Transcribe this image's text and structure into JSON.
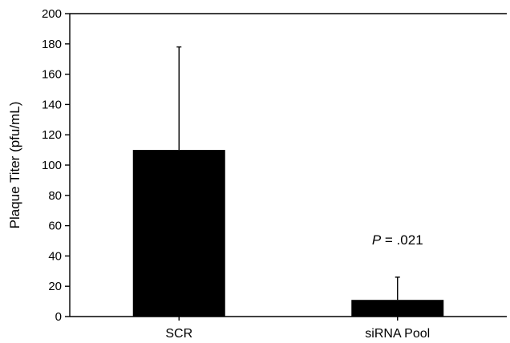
{
  "chart_data": {
    "type": "bar",
    "title": "",
    "xlabel": "",
    "ylabel": "Plaque Titer (pfu/mL)",
    "ylim": [
      0,
      200
    ],
    "yticks": [
      0,
      20,
      40,
      60,
      80,
      100,
      120,
      140,
      160,
      180,
      200
    ],
    "categories": [
      "SCR",
      "siRNA Pool"
    ],
    "values": [
      110,
      11
    ],
    "error_upper": [
      68,
      15
    ],
    "bar_color": "#000000",
    "grid": false,
    "annotations": [
      {
        "category": "siRNA Pool",
        "italic_part": "P",
        "text_part": " = .021"
      }
    ]
  }
}
